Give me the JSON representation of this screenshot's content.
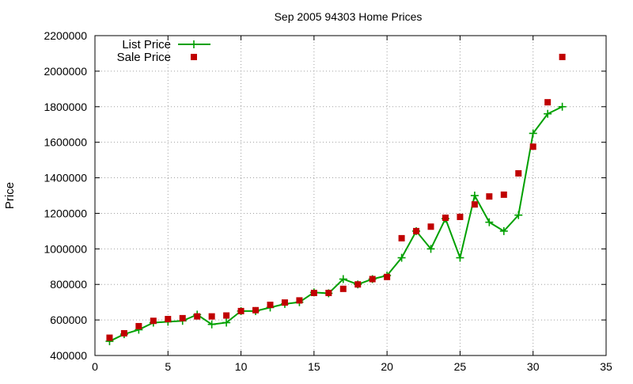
{
  "chart_data": {
    "type": "line",
    "title": "Sep 2005 94303 Home Prices",
    "xlabel": "",
    "ylabel": "Price",
    "xlim": [
      0,
      35
    ],
    "ylim": [
      400000,
      2200000
    ],
    "x_ticks": [
      0,
      5,
      10,
      15,
      20,
      25,
      30,
      35
    ],
    "y_ticks": [
      400000,
      600000,
      800000,
      1000000,
      1200000,
      1400000,
      1600000,
      1800000,
      2000000,
      2200000
    ],
    "grid": true,
    "legend_position": "top-left",
    "series": [
      {
        "name": "List Price",
        "style": "linespoints",
        "marker": "plus",
        "color": "#00a000",
        "x": [
          1,
          2,
          3,
          4,
          5,
          6,
          7,
          8,
          9,
          10,
          11,
          12,
          13,
          14,
          15,
          16,
          17,
          18,
          19,
          20,
          21,
          22,
          23,
          24,
          25,
          26,
          27,
          28,
          29,
          30,
          31,
          32
        ],
        "values": [
          480000,
          520000,
          545000,
          585000,
          590000,
          595000,
          630000,
          575000,
          585000,
          650000,
          650000,
          670000,
          690000,
          700000,
          755000,
          750000,
          830000,
          800000,
          830000,
          850000,
          950000,
          1100000,
          1000000,
          1170000,
          950000,
          1300000,
          1150000,
          1100000,
          1190000,
          1650000,
          1760000,
          1800000
        ]
      },
      {
        "name": "Sale Price",
        "style": "points",
        "marker": "square",
        "color": "#c00000",
        "x": [
          1,
          2,
          3,
          4,
          5,
          6,
          7,
          8,
          9,
          10,
          11,
          12,
          13,
          14,
          15,
          16,
          17,
          18,
          19,
          20,
          21,
          22,
          23,
          24,
          25,
          26,
          27,
          28,
          29,
          30,
          31,
          32
        ],
        "values": [
          500000,
          525000,
          565000,
          595000,
          605000,
          610000,
          620000,
          620000,
          625000,
          650000,
          655000,
          685000,
          698000,
          710000,
          752000,
          752000,
          775000,
          800000,
          830000,
          842000,
          1060000,
          1100000,
          1125000,
          1175000,
          1180000,
          1250000,
          1295000,
          1305000,
          1425000,
          1575000,
          1825000,
          2080000
        ]
      }
    ]
  }
}
